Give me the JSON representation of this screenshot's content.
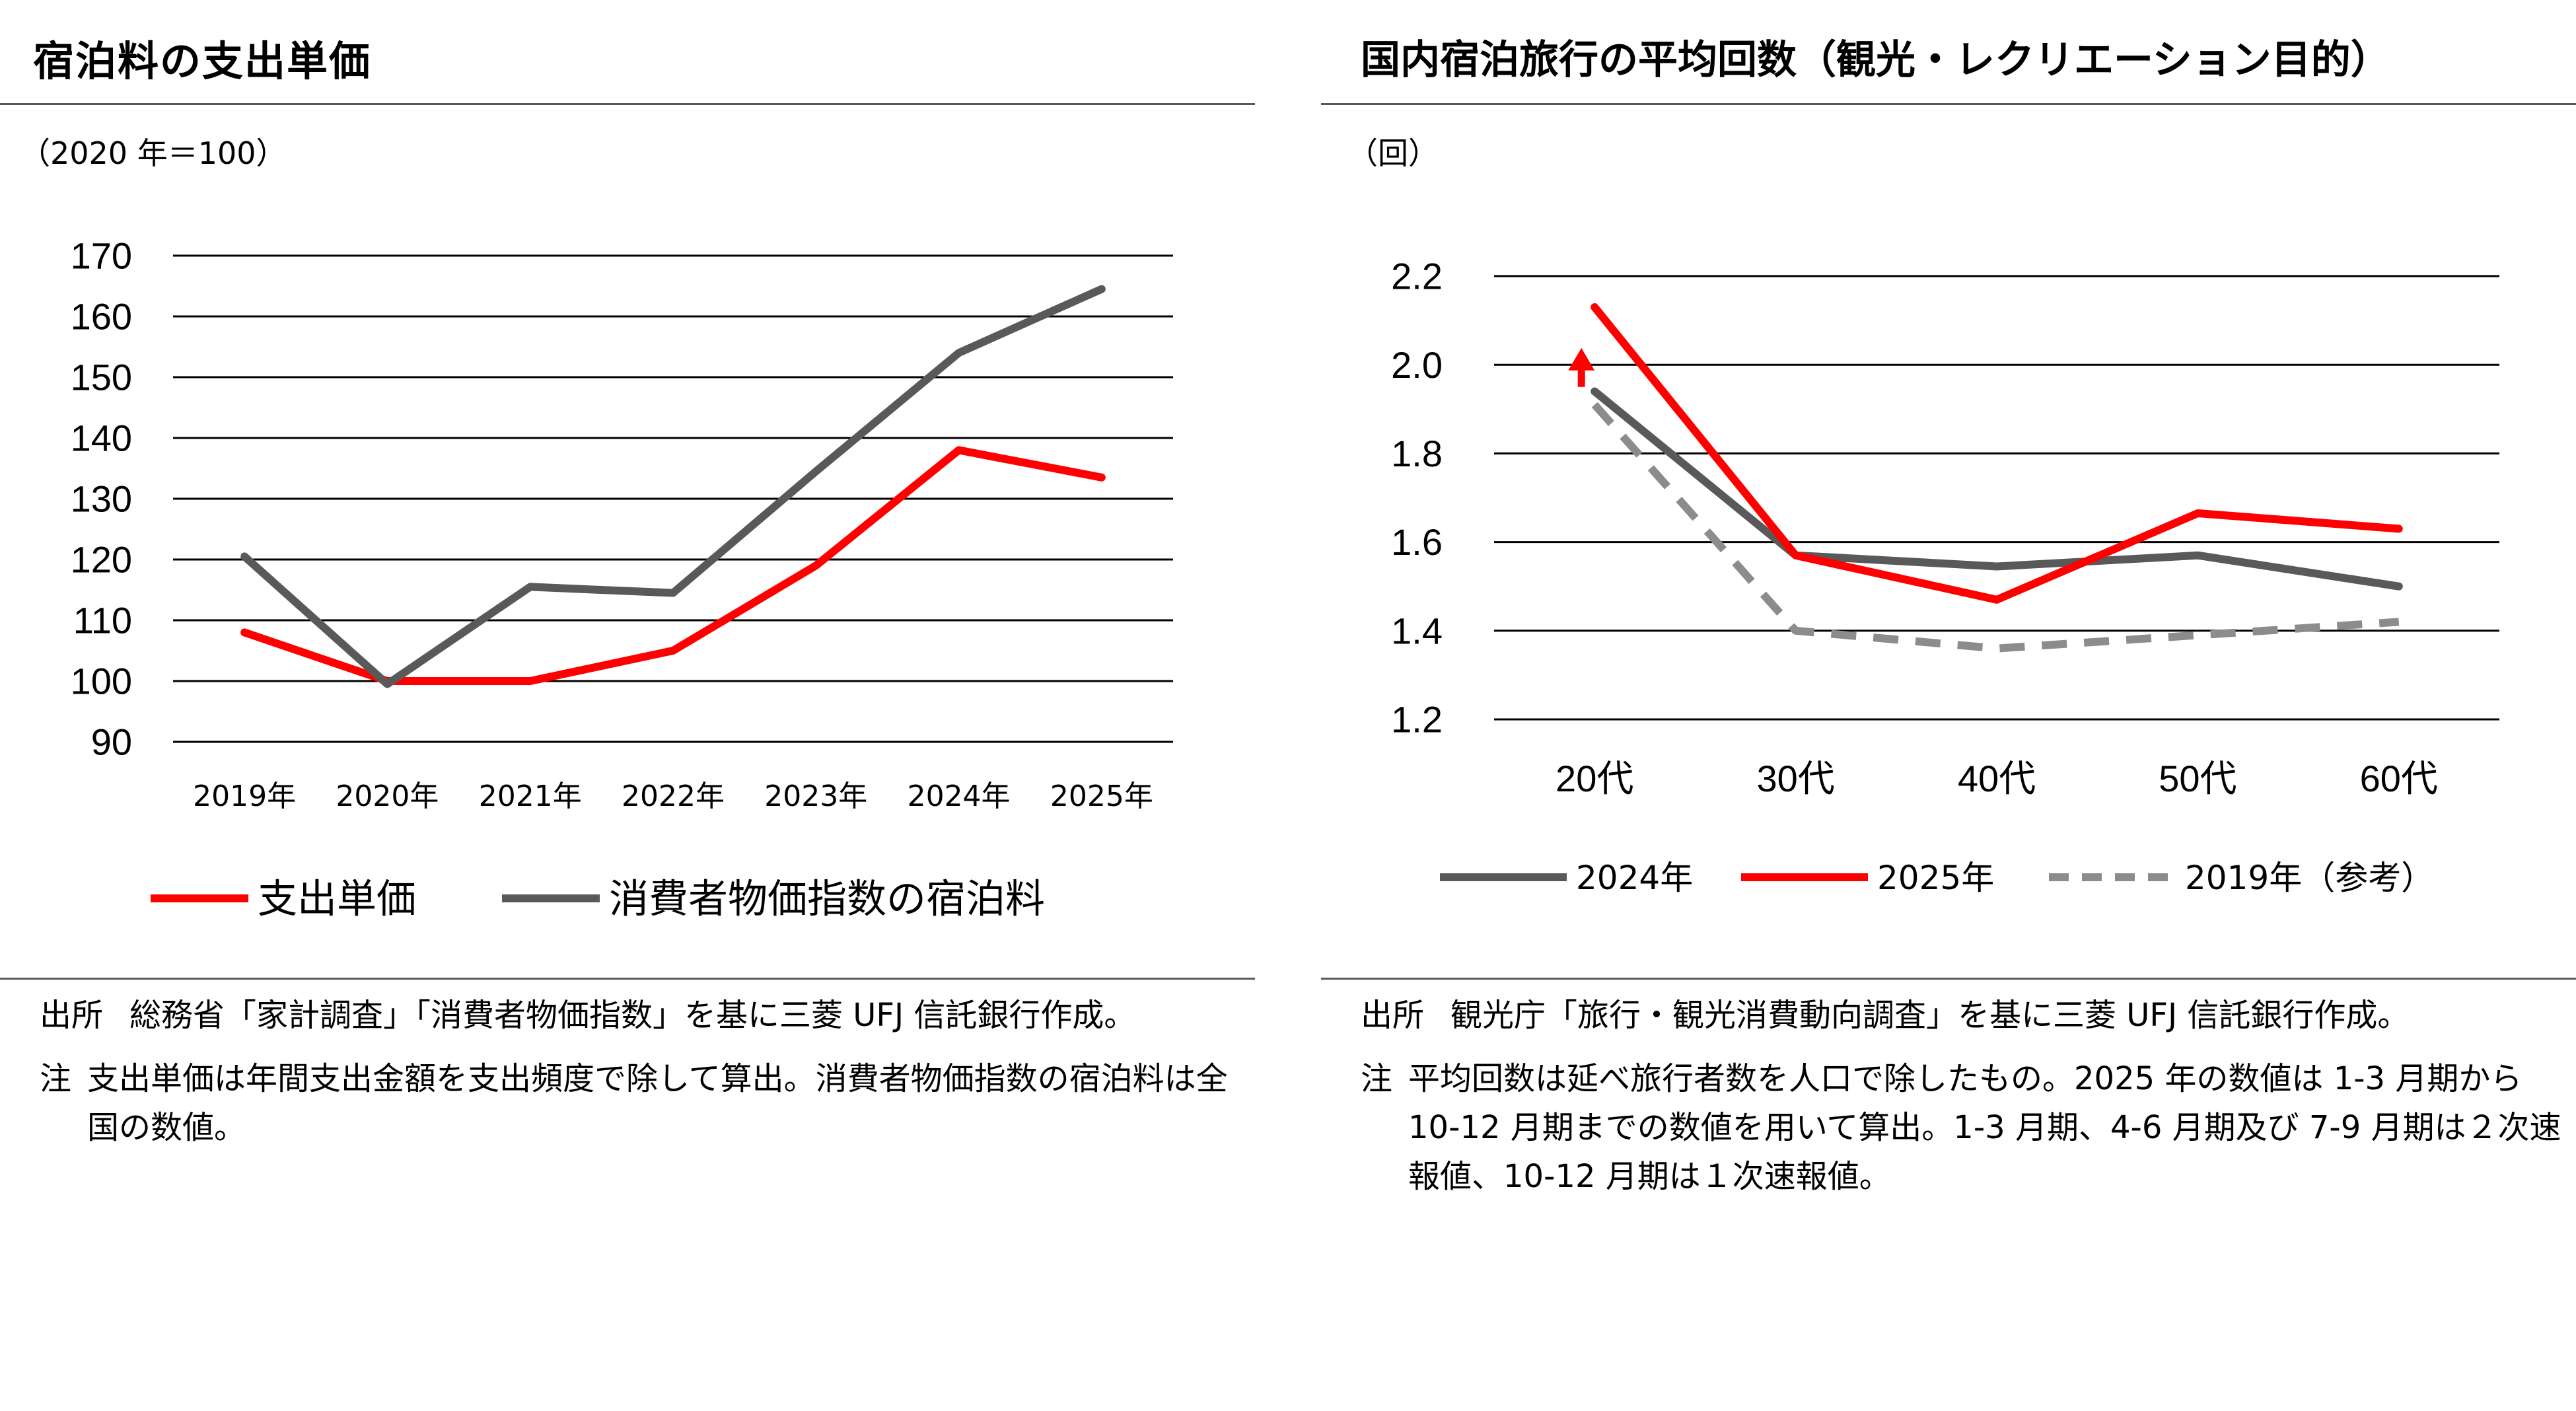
{
  "left": {
    "title": "宿泊料の支出単価",
    "unit": "（2020 年＝100）",
    "note_source_head": "出所",
    "note_source_body": "総務省「家計調査」「消費者物価指数」を基に三菱 UFJ 信託銀行作成。",
    "note_head": "注",
    "note_body": "支出単価は年間支出金額を支出頻度で除して算出。消費者物価指数の宿泊料は全国の数値。"
  },
  "right": {
    "title": "国内宿泊旅行の平均回数（観光・レクリエーション目的）",
    "unit": "（回）",
    "note_source_head": "出所",
    "note_source_body": "観光庁「旅行・観光消費動向調査」を基に三菱 UFJ 信託銀行作成。",
    "note_head": "注",
    "note_body": "平均回数は延べ旅行者数を人口で除したもの。2025 年の数値は 1-3 月期から 10-12 月期までの数値を用いて算出。1-3 月期、4-6 月期及び 7-9 月期は２次速報値、10-12 月期は１次速報値。"
  },
  "chart_data": [
    {
      "type": "line",
      "title": "宿泊料の支出単価",
      "ylabel": "（2020 年＝100）",
      "categories": [
        "2019年",
        "2020年",
        "2021年",
        "2022年",
        "2023年",
        "2024年",
        "2025年"
      ],
      "ylim": [
        90,
        170
      ],
      "yticks": [
        90,
        100,
        110,
        120,
        130,
        140,
        150,
        160,
        170
      ],
      "grid": true,
      "legend_position": "bottom",
      "series": [
        {
          "name": "支出単価",
          "color": "#ff0000",
          "dash": false,
          "values": [
            108,
            100,
            100,
            105,
            119,
            138,
            133.5
          ]
        },
        {
          "name": "消費者物価指数の宿泊料",
          "color": "#595959",
          "dash": false,
          "values": [
            120.5,
            99.5,
            115.5,
            114.5,
            134.5,
            154,
            164.5
          ]
        }
      ]
    },
    {
      "type": "line",
      "title": "国内宿泊旅行の平均回数（観光・レクリエーション目的）",
      "ylabel": "（回）",
      "categories": [
        "20代",
        "30代",
        "40代",
        "50代",
        "60代"
      ],
      "ylim": [
        1.2,
        2.2
      ],
      "yticks": [
        "1.2",
        "1.4",
        "1.6",
        "1.8",
        "2.0",
        "2.2"
      ],
      "grid": true,
      "legend_position": "bottom",
      "annotation": "red upward arrow at 20代 between 2024年 and 2025年",
      "series": [
        {
          "name": "2024年",
          "color": "#595959",
          "dash": false,
          "values": [
            1.94,
            1.57,
            1.545,
            1.57,
            1.5
          ]
        },
        {
          "name": "2025年",
          "color": "#ff0000",
          "dash": false,
          "values": [
            2.13,
            1.57,
            1.47,
            1.665,
            1.63
          ]
        },
        {
          "name": "2019年（参考）",
          "color": "#8c8c8c",
          "dash": true,
          "values": [
            1.91,
            1.4,
            1.36,
            1.39,
            1.42
          ]
        }
      ]
    }
  ]
}
